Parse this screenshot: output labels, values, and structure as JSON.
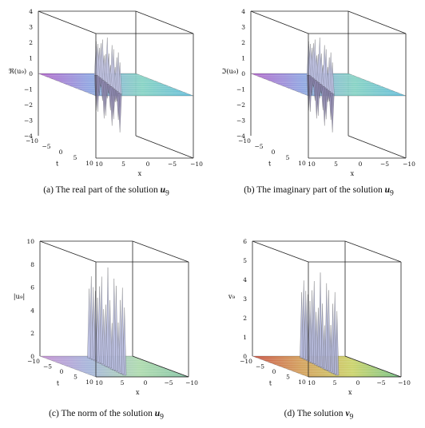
{
  "panels": [
    {
      "caption": {
        "label": "(a)",
        "text": "The real part of the solution",
        "var": "u",
        "sub": "9"
      },
      "zlabel": "ℜ(u₉)",
      "tlabel": "t",
      "xlabel": "x",
      "z_ticks": [
        "4",
        "3",
        "2",
        "1",
        "0",
        "−1",
        "−2",
        "−3",
        "−4"
      ],
      "t_ticks": [
        "−10",
        "−5",
        "0",
        "5",
        "10"
      ],
      "x_ticks": [
        "10",
        "5",
        "0",
        "−5",
        "−10"
      ]
    },
    {
      "caption": {
        "label": "(b)",
        "text": "The imaginary part of the solution",
        "var": "u",
        "sub": "9"
      },
      "zlabel": "ℑ(u₉)",
      "tlabel": "t",
      "xlabel": "x",
      "z_ticks": [
        "4",
        "3",
        "2",
        "1",
        "0",
        "−1",
        "−2",
        "−3",
        "−4"
      ],
      "t_ticks": [
        "−10",
        "−5",
        "0",
        "5",
        "10"
      ],
      "x_ticks": [
        "10",
        "5",
        "0",
        "−5",
        "−10"
      ]
    },
    {
      "caption": {
        "label": "(c)",
        "text": "The norm of the solution",
        "var": "u",
        "sub": "9"
      },
      "zlabel": "|u₉|",
      "tlabel": "t",
      "xlabel": "x",
      "z_ticks": [
        "10",
        "8",
        "6",
        "4",
        "2",
        "0"
      ],
      "t_ticks": [
        "−10",
        "−5",
        "0",
        "5",
        "10"
      ],
      "x_ticks": [
        "10",
        "5",
        "0",
        "−5",
        "−10"
      ]
    },
    {
      "caption": {
        "label": "(d)",
        "text": "The solution",
        "var": "v",
        "sub": "9"
      },
      "zlabel": "v₉",
      "tlabel": "t",
      "xlabel": "x",
      "z_ticks": [
        "6",
        "5",
        "4",
        "3",
        "2",
        "1",
        "0"
      ],
      "t_ticks": [
        "−10",
        "−5",
        "0",
        "5",
        "10"
      ],
      "x_ticks": [
        "10",
        "5",
        "0",
        "−5",
        "−10"
      ]
    }
  ]
}
